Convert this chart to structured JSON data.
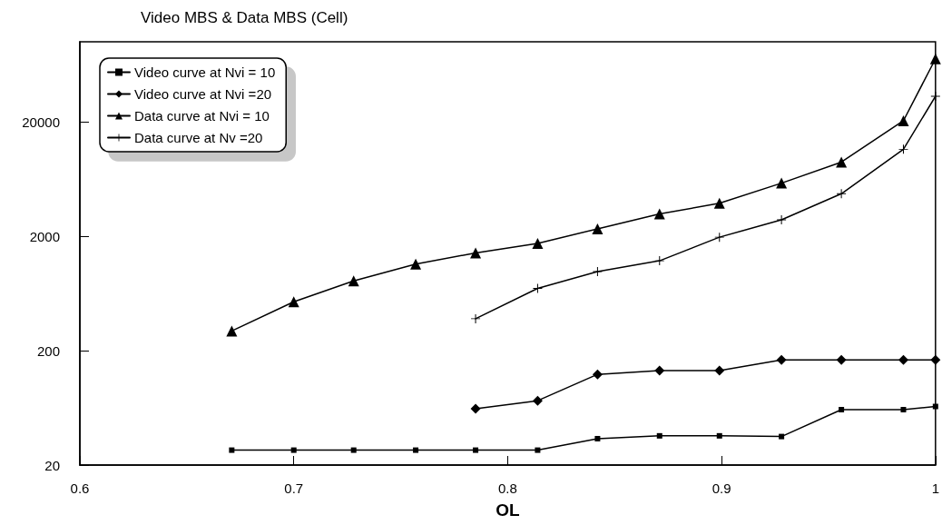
{
  "chart_data": {
    "type": "line",
    "title": "Video MBS & Data MBS (Cell)",
    "xlabel": "OL",
    "xlim": [
      0.6,
      1
    ],
    "xticks": [
      0.6,
      0.7,
      0.8,
      0.9,
      1
    ],
    "ylim": [
      20,
      100000
    ],
    "yticks": [
      20,
      200,
      2000,
      20000
    ],
    "log": "y",
    "grid": false,
    "legend": "top left",
    "series": [
      {
        "name": "Video curve at Nvi = 10",
        "color": "#000000",
        "marker": "square",
        "x": [
          0.671,
          0.7,
          0.728,
          0.757,
          0.785,
          0.814,
          0.842,
          0.871,
          0.899,
          0.928,
          0.956,
          0.985,
          1
        ],
        "values": [
          27,
          27,
          27,
          27,
          27,
          27,
          34,
          36,
          36,
          35.5,
          61,
          61,
          65
        ]
      },
      {
        "name": "Video curve at Nvi =20",
        "color": "#000000",
        "marker": "diamond",
        "x": [
          0.785,
          0.814,
          0.842,
          0.871,
          0.899,
          0.928,
          0.956,
          0.985,
          1
        ],
        "values": [
          62,
          73,
          124,
          134,
          134,
          166,
          166,
          166,
          166
        ]
      },
      {
        "name": "Data curve at Nvi = 10",
        "color": "#000000",
        "marker": "triangle",
        "x": [
          0.671,
          0.7,
          0.728,
          0.757,
          0.785,
          0.814,
          0.842,
          0.871,
          0.899,
          0.928,
          0.956,
          0.985,
          1
        ],
        "values": [
          297,
          534,
          814,
          1140,
          1430,
          1730,
          2320,
          3130,
          3880,
          5820,
          8890,
          20400,
          71000
        ]
      },
      {
        "name": "Data curve at Nv =20",
        "color": "#000000",
        "marker": "cross",
        "x": [
          0.785,
          0.814,
          0.842,
          0.871,
          0.899,
          0.928,
          0.956,
          0.985,
          1
        ],
        "values": [
          380,
          700,
          980,
          1220,
          1960,
          2780,
          4700,
          11500,
          33400
        ]
      }
    ]
  }
}
